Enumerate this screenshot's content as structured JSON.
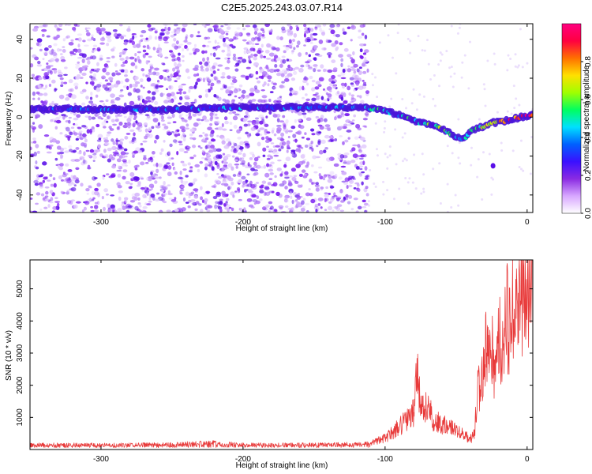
{
  "title": "C2E5.2025.243.03.07.R14",
  "colors": {
    "spec_band": "#5a1cd6",
    "snr_line": "#e83a3a",
    "frame": "#000000"
  },
  "chart_data": [
    {
      "type": "heatmap",
      "xlabel": "Height of straight line (km)",
      "ylabel": "Frequency (Hz)",
      "xlim": [
        -350,
        4
      ],
      "ylim": [
        -49,
        48
      ],
      "xticks": [
        -300,
        -200,
        -100,
        0
      ],
      "xtick_labels": [
        "-300",
        "-200",
        "-100",
        "0"
      ],
      "yticks": [
        -40,
        -20,
        0,
        20,
        40
      ],
      "ytick_labels": [
        "-40",
        "-20",
        "0",
        "20",
        "40"
      ],
      "grid": false,
      "colorbar": {
        "label": "Normalized spectral amplitude",
        "range": [
          0,
          1
        ],
        "ticks": [
          0,
          0.2,
          0.4,
          0.6,
          0.8
        ],
        "tick_labels": [
          "0.0",
          "0.2",
          "0.4",
          "0.6",
          "0.8"
        ],
        "colormap": [
          "#ffffff",
          "#d8a8ff",
          "#8a2be2",
          "#3a10ff",
          "#0060ff",
          "#00e0ff",
          "#00ff60",
          "#a0ff00",
          "#ffe000",
          "#ff7000",
          "#ff0040",
          "#ff0080"
        ]
      },
      "ridge": {
        "x": [
          -350,
          -300,
          -250,
          -200,
          -150,
          -120,
          -105,
          -95,
          -85,
          -75,
          -65,
          -55,
          -45,
          -40,
          -35,
          -25,
          -15,
          -5,
          4
        ],
        "y": [
          4,
          4,
          4,
          5,
          5,
          5,
          4,
          2,
          0,
          -3,
          -4,
          -8,
          -12,
          -7,
          -6,
          -3,
          -2,
          0,
          1
        ],
        "amplitude": [
          0.3,
          0.3,
          0.35,
          0.35,
          0.35,
          0.4,
          0.45,
          0.45,
          0.5,
          0.5,
          0.55,
          0.55,
          0.5,
          0.45,
          0.5,
          0.7,
          0.8,
          0.9,
          0.95
        ]
      }
    },
    {
      "type": "line",
      "xlabel": "Height of straight line (km)",
      "ylabel": "SNR (10 * v/v)",
      "xlim": [
        -350,
        4
      ],
      "ylim": [
        0,
        5900
      ],
      "xticks": [
        -300,
        -200,
        -100,
        0
      ],
      "xtick_labels": [
        "-300",
        "-200",
        "-100",
        "0"
      ],
      "yticks": [
        1000,
        2000,
        3000,
        4000,
        5000
      ],
      "ytick_labels": [
        "1000",
        "2000",
        "3000",
        "4000",
        "5000"
      ],
      "grid": false,
      "series": [
        {
          "color": "#e83a3a",
          "x": [
            -350,
            -300,
            -250,
            -225,
            -200,
            -150,
            -120,
            -110,
            -100,
            -90,
            -85,
            -80,
            -77,
            -75,
            -70,
            -65,
            -60,
            -55,
            -50,
            -45,
            -40,
            -37,
            -35,
            -32,
            -30,
            -27,
            -25,
            -22,
            -20,
            -17,
            -15,
            -12,
            -10,
            -7,
            -5,
            -2,
            0,
            2,
            4
          ],
          "y": [
            150,
            140,
            160,
            230,
            150,
            150,
            170,
            200,
            350,
            700,
            950,
            1100,
            2500,
            1300,
            1250,
            900,
            800,
            700,
            600,
            500,
            300,
            500,
            1700,
            2300,
            3300,
            2600,
            3400,
            2100,
            3900,
            3000,
            4300,
            3600,
            4700,
            4100,
            4900,
            4500,
            5500,
            5000,
            5300
          ]
        }
      ]
    }
  ]
}
